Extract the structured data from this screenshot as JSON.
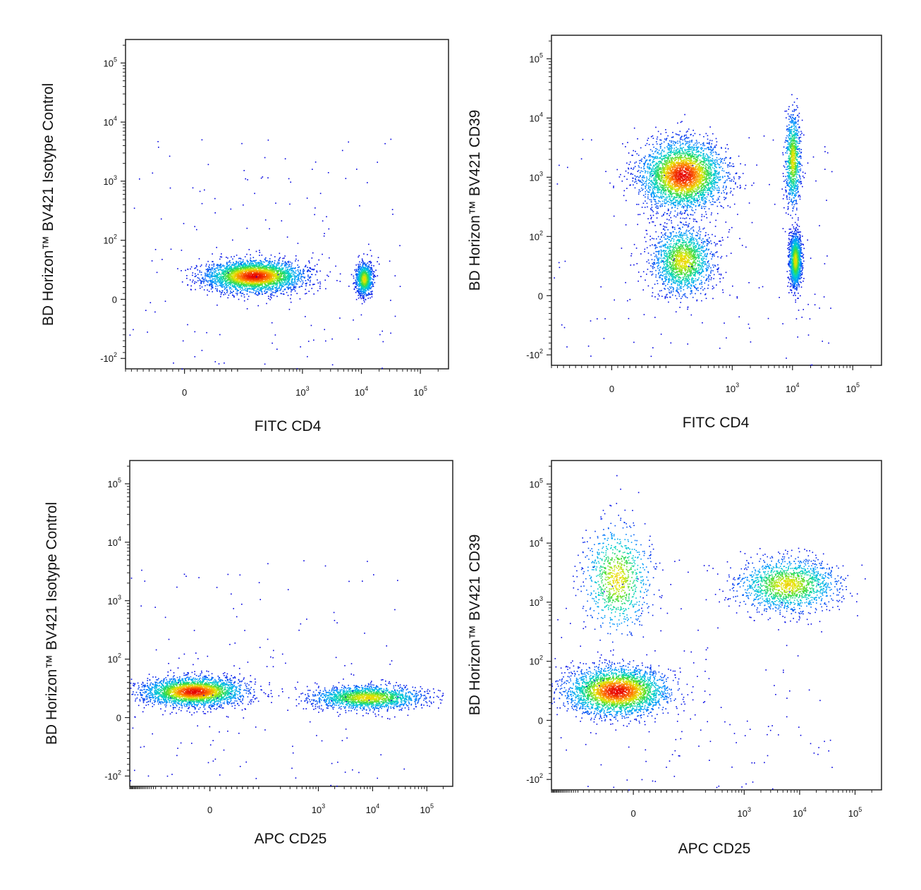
{
  "chart_data": [
    {
      "type": "scatter",
      "panel": "top-left",
      "title": "",
      "xlabel": "FITC CD4",
      "ylabel": "BD Horizon™ BV421 Isotype Control",
      "x_scale": "biexponential",
      "y_scale": "biexponential",
      "xlim": [
        -100,
        300000
      ],
      "ylim": [
        -150,
        250000
      ],
      "x_ticks": [
        {
          "base": "0",
          "exp": ""
        },
        {
          "base": "10",
          "exp": "3"
        },
        {
          "base": "10",
          "exp": "4"
        },
        {
          "base": "10",
          "exp": "5"
        }
      ],
      "y_ticks": [
        {
          "base": "-10",
          "exp": "2"
        },
        {
          "base": "0",
          "exp": ""
        },
        {
          "base": "10",
          "exp": "2"
        },
        {
          "base": "10",
          "exp": "3"
        },
        {
          "base": "10",
          "exp": "4"
        },
        {
          "base": "10",
          "exp": "5"
        }
      ],
      "grid": false,
      "color_scale": "density (blue-cyan-green-yellow-red)",
      "populations": [
        {
          "x_center": 150,
          "y_center": 40,
          "note": "CD4-negative, isotype-negative (largest cluster)"
        },
        {
          "x_center": 11000,
          "y_center": 35,
          "note": "CD4-positive, isotype-negative"
        }
      ]
    },
    {
      "type": "scatter",
      "panel": "top-right",
      "title": "",
      "xlabel": "FITC CD4",
      "ylabel": "BD Horizon™ BV421 CD39",
      "x_scale": "biexponential",
      "y_scale": "biexponential",
      "xlim": [
        -100,
        300000
      ],
      "ylim": [
        -150,
        250000
      ],
      "x_ticks": [
        {
          "base": "0",
          "exp": ""
        },
        {
          "base": "10",
          "exp": "3"
        },
        {
          "base": "10",
          "exp": "4"
        },
        {
          "base": "10",
          "exp": "5"
        }
      ],
      "y_ticks": [
        {
          "base": "-10",
          "exp": "2"
        },
        {
          "base": "0",
          "exp": ""
        },
        {
          "base": "10",
          "exp": "2"
        },
        {
          "base": "10",
          "exp": "3"
        },
        {
          "base": "10",
          "exp": "4"
        },
        {
          "base": "10",
          "exp": "5"
        }
      ],
      "grid": false,
      "color_scale": "density (blue-cyan-green-yellow-red)",
      "populations": [
        {
          "x_center": 150,
          "y_center": 1100,
          "note": "CD4-negative, CD39-high (densest)"
        },
        {
          "x_center": 150,
          "y_center": 60,
          "note": "CD4-negative, CD39-low"
        },
        {
          "x_center": 11000,
          "y_center": 60,
          "note": "CD4-positive, CD39-low"
        },
        {
          "x_center": 10000,
          "y_center": 2000,
          "note": "CD4-positive, CD39-positive"
        }
      ]
    },
    {
      "type": "scatter",
      "panel": "bottom-left",
      "title": "",
      "xlabel": "APC CD25",
      "ylabel": "BD Horizon™ BV421 Isotype Control",
      "x_scale": "biexponential",
      "y_scale": "biexponential",
      "xlim": [
        -300,
        300000
      ],
      "ylim": [
        -150,
        250000
      ],
      "x_ticks": [
        {
          "base": "0",
          "exp": ""
        },
        {
          "base": "10",
          "exp": "3"
        },
        {
          "base": "10",
          "exp": "4"
        },
        {
          "base": "10",
          "exp": "5"
        }
      ],
      "y_ticks": [
        {
          "base": "-10",
          "exp": "2"
        },
        {
          "base": "0",
          "exp": ""
        },
        {
          "base": "10",
          "exp": "2"
        },
        {
          "base": "10",
          "exp": "3"
        },
        {
          "base": "10",
          "exp": "4"
        },
        {
          "base": "10",
          "exp": "5"
        }
      ],
      "grid": false,
      "color_scale": "density (blue-cyan-green-yellow-red)",
      "populations": [
        {
          "x_center": -30,
          "y_center": 45,
          "note": "CD25-negative, isotype-negative (densest)"
        },
        {
          "x_center": 8000,
          "y_center": 35,
          "note": "CD25-positive tail"
        }
      ]
    },
    {
      "type": "scatter",
      "panel": "bottom-right",
      "title": "",
      "xlabel": "APC CD25",
      "ylabel": "BD Horizon™ BV421 CD39",
      "x_scale": "biexponential",
      "y_scale": "biexponential",
      "xlim": [
        -300,
        300000
      ],
      "ylim": [
        -150,
        250000
      ],
      "x_ticks": [
        {
          "base": "0",
          "exp": ""
        },
        {
          "base": "10",
          "exp": "3"
        },
        {
          "base": "10",
          "exp": "4"
        },
        {
          "base": "10",
          "exp": "5"
        }
      ],
      "y_ticks": [
        {
          "base": "-10",
          "exp": "2"
        },
        {
          "base": "0",
          "exp": ""
        },
        {
          "base": "10",
          "exp": "2"
        },
        {
          "base": "10",
          "exp": "3"
        },
        {
          "base": "10",
          "exp": "4"
        },
        {
          "base": "10",
          "exp": "5"
        }
      ],
      "grid": false,
      "color_scale": "density (blue-cyan-green-yellow-red)",
      "populations": [
        {
          "x_center": -30,
          "y_center": 50,
          "note": "CD25-negative, CD39-low (densest)"
        },
        {
          "x_center": 6000,
          "y_center": 2000,
          "note": "CD25-positive, CD39-positive"
        },
        {
          "x_center": -30,
          "y_center": 2500,
          "note": "CD25-negative, CD39-positive"
        }
      ]
    }
  ]
}
